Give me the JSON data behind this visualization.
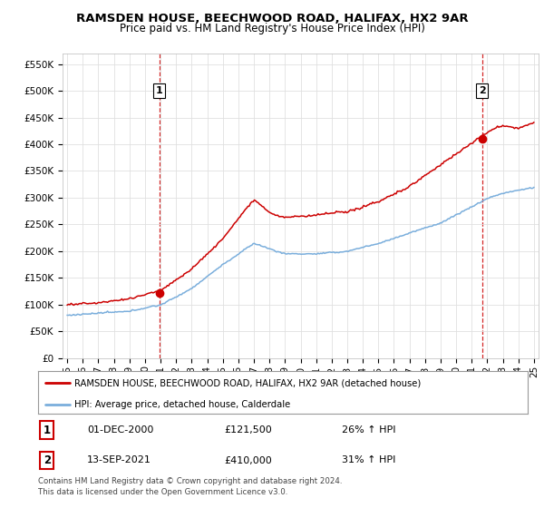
{
  "title": "RAMSDEN HOUSE, BEECHWOOD ROAD, HALIFAX, HX2 9AR",
  "subtitle": "Price paid vs. HM Land Registry's House Price Index (HPI)",
  "ylim": [
    0,
    570000
  ],
  "yticks": [
    0,
    50000,
    100000,
    150000,
    200000,
    250000,
    300000,
    350000,
    400000,
    450000,
    500000,
    550000
  ],
  "ytick_labels": [
    "£0",
    "£50K",
    "£100K",
    "£150K",
    "£200K",
    "£250K",
    "£300K",
    "£350K",
    "£400K",
    "£450K",
    "£500K",
    "£550K"
  ],
  "legend_line1": "RAMSDEN HOUSE, BEECHWOOD ROAD, HALIFAX, HX2 9AR (detached house)",
  "legend_line2": "HPI: Average price, detached house, Calderdale",
  "line1_color": "#cc0000",
  "line2_color": "#7aaedc",
  "annotation1_label": "1",
  "annotation1_date": "01-DEC-2000",
  "annotation1_price": "£121,500",
  "annotation1_hpi": "26% ↑ HPI",
  "annotation2_label": "2",
  "annotation2_date": "13-SEP-2021",
  "annotation2_price": "£410,000",
  "annotation2_hpi": "31% ↑ HPI",
  "footer": "Contains HM Land Registry data © Crown copyright and database right 2024.\nThis data is licensed under the Open Government Licence v3.0.",
  "background_color": "#ffffff",
  "grid_color": "#e0e0e0",
  "vline_color": "#cc0000",
  "marker_color": "#cc0000"
}
